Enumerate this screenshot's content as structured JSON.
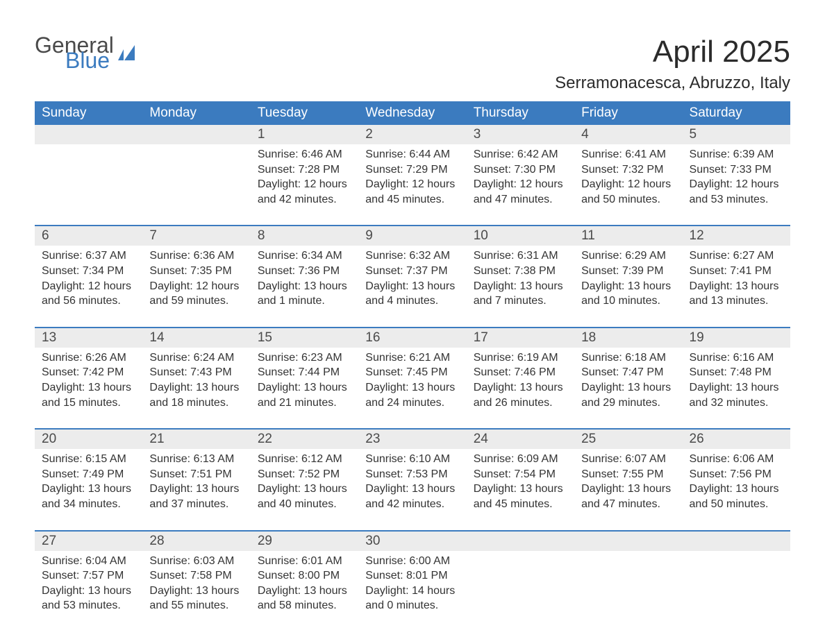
{
  "branding": {
    "line1": "General",
    "line2": "Blue",
    "icon_color": "#3b7bbf",
    "text_color_1": "#4a4a4a",
    "text_color_2": "#3b7bbf"
  },
  "title": {
    "month": "April 2025",
    "location": "Serramonacesca, Abruzzo, Italy"
  },
  "colors": {
    "header_bg": "#3b7bbf",
    "header_text": "#ffffff",
    "daynum_bg": "#ececec",
    "daynum_text": "#4a4a4a",
    "body_text": "#333333",
    "separator": "#3b7bbf",
    "page_bg": "#ffffff"
  },
  "typography": {
    "month_title_size": 44,
    "location_size": 24,
    "dow_size": 19,
    "daynum_size": 19,
    "detail_size": 16,
    "font_family": "Arial"
  },
  "days_of_week": [
    "Sunday",
    "Monday",
    "Tuesday",
    "Wednesday",
    "Thursday",
    "Friday",
    "Saturday"
  ],
  "weeks": [
    [
      null,
      null,
      {
        "n": "1",
        "sunrise": "Sunrise: 6:46 AM",
        "sunset": "Sunset: 7:28 PM",
        "dl1": "Daylight: 12 hours",
        "dl2": "and 42 minutes."
      },
      {
        "n": "2",
        "sunrise": "Sunrise: 6:44 AM",
        "sunset": "Sunset: 7:29 PM",
        "dl1": "Daylight: 12 hours",
        "dl2": "and 45 minutes."
      },
      {
        "n": "3",
        "sunrise": "Sunrise: 6:42 AM",
        "sunset": "Sunset: 7:30 PM",
        "dl1": "Daylight: 12 hours",
        "dl2": "and 47 minutes."
      },
      {
        "n": "4",
        "sunrise": "Sunrise: 6:41 AM",
        "sunset": "Sunset: 7:32 PM",
        "dl1": "Daylight: 12 hours",
        "dl2": "and 50 minutes."
      },
      {
        "n": "5",
        "sunrise": "Sunrise: 6:39 AM",
        "sunset": "Sunset: 7:33 PM",
        "dl1": "Daylight: 12 hours",
        "dl2": "and 53 minutes."
      }
    ],
    [
      {
        "n": "6",
        "sunrise": "Sunrise: 6:37 AM",
        "sunset": "Sunset: 7:34 PM",
        "dl1": "Daylight: 12 hours",
        "dl2": "and 56 minutes."
      },
      {
        "n": "7",
        "sunrise": "Sunrise: 6:36 AM",
        "sunset": "Sunset: 7:35 PM",
        "dl1": "Daylight: 12 hours",
        "dl2": "and 59 minutes."
      },
      {
        "n": "8",
        "sunrise": "Sunrise: 6:34 AM",
        "sunset": "Sunset: 7:36 PM",
        "dl1": "Daylight: 13 hours",
        "dl2": "and 1 minute."
      },
      {
        "n": "9",
        "sunrise": "Sunrise: 6:32 AM",
        "sunset": "Sunset: 7:37 PM",
        "dl1": "Daylight: 13 hours",
        "dl2": "and 4 minutes."
      },
      {
        "n": "10",
        "sunrise": "Sunrise: 6:31 AM",
        "sunset": "Sunset: 7:38 PM",
        "dl1": "Daylight: 13 hours",
        "dl2": "and 7 minutes."
      },
      {
        "n": "11",
        "sunrise": "Sunrise: 6:29 AM",
        "sunset": "Sunset: 7:39 PM",
        "dl1": "Daylight: 13 hours",
        "dl2": "and 10 minutes."
      },
      {
        "n": "12",
        "sunrise": "Sunrise: 6:27 AM",
        "sunset": "Sunset: 7:41 PM",
        "dl1": "Daylight: 13 hours",
        "dl2": "and 13 minutes."
      }
    ],
    [
      {
        "n": "13",
        "sunrise": "Sunrise: 6:26 AM",
        "sunset": "Sunset: 7:42 PM",
        "dl1": "Daylight: 13 hours",
        "dl2": "and 15 minutes."
      },
      {
        "n": "14",
        "sunrise": "Sunrise: 6:24 AM",
        "sunset": "Sunset: 7:43 PM",
        "dl1": "Daylight: 13 hours",
        "dl2": "and 18 minutes."
      },
      {
        "n": "15",
        "sunrise": "Sunrise: 6:23 AM",
        "sunset": "Sunset: 7:44 PM",
        "dl1": "Daylight: 13 hours",
        "dl2": "and 21 minutes."
      },
      {
        "n": "16",
        "sunrise": "Sunrise: 6:21 AM",
        "sunset": "Sunset: 7:45 PM",
        "dl1": "Daylight: 13 hours",
        "dl2": "and 24 minutes."
      },
      {
        "n": "17",
        "sunrise": "Sunrise: 6:19 AM",
        "sunset": "Sunset: 7:46 PM",
        "dl1": "Daylight: 13 hours",
        "dl2": "and 26 minutes."
      },
      {
        "n": "18",
        "sunrise": "Sunrise: 6:18 AM",
        "sunset": "Sunset: 7:47 PM",
        "dl1": "Daylight: 13 hours",
        "dl2": "and 29 minutes."
      },
      {
        "n": "19",
        "sunrise": "Sunrise: 6:16 AM",
        "sunset": "Sunset: 7:48 PM",
        "dl1": "Daylight: 13 hours",
        "dl2": "and 32 minutes."
      }
    ],
    [
      {
        "n": "20",
        "sunrise": "Sunrise: 6:15 AM",
        "sunset": "Sunset: 7:49 PM",
        "dl1": "Daylight: 13 hours",
        "dl2": "and 34 minutes."
      },
      {
        "n": "21",
        "sunrise": "Sunrise: 6:13 AM",
        "sunset": "Sunset: 7:51 PM",
        "dl1": "Daylight: 13 hours",
        "dl2": "and 37 minutes."
      },
      {
        "n": "22",
        "sunrise": "Sunrise: 6:12 AM",
        "sunset": "Sunset: 7:52 PM",
        "dl1": "Daylight: 13 hours",
        "dl2": "and 40 minutes."
      },
      {
        "n": "23",
        "sunrise": "Sunrise: 6:10 AM",
        "sunset": "Sunset: 7:53 PM",
        "dl1": "Daylight: 13 hours",
        "dl2": "and 42 minutes."
      },
      {
        "n": "24",
        "sunrise": "Sunrise: 6:09 AM",
        "sunset": "Sunset: 7:54 PM",
        "dl1": "Daylight: 13 hours",
        "dl2": "and 45 minutes."
      },
      {
        "n": "25",
        "sunrise": "Sunrise: 6:07 AM",
        "sunset": "Sunset: 7:55 PM",
        "dl1": "Daylight: 13 hours",
        "dl2": "and 47 minutes."
      },
      {
        "n": "26",
        "sunrise": "Sunrise: 6:06 AM",
        "sunset": "Sunset: 7:56 PM",
        "dl1": "Daylight: 13 hours",
        "dl2": "and 50 minutes."
      }
    ],
    [
      {
        "n": "27",
        "sunrise": "Sunrise: 6:04 AM",
        "sunset": "Sunset: 7:57 PM",
        "dl1": "Daylight: 13 hours",
        "dl2": "and 53 minutes."
      },
      {
        "n": "28",
        "sunrise": "Sunrise: 6:03 AM",
        "sunset": "Sunset: 7:58 PM",
        "dl1": "Daylight: 13 hours",
        "dl2": "and 55 minutes."
      },
      {
        "n": "29",
        "sunrise": "Sunrise: 6:01 AM",
        "sunset": "Sunset: 8:00 PM",
        "dl1": "Daylight: 13 hours",
        "dl2": "and 58 minutes."
      },
      {
        "n": "30",
        "sunrise": "Sunrise: 6:00 AM",
        "sunset": "Sunset: 8:01 PM",
        "dl1": "Daylight: 14 hours",
        "dl2": "and 0 minutes."
      },
      null,
      null,
      null
    ]
  ]
}
